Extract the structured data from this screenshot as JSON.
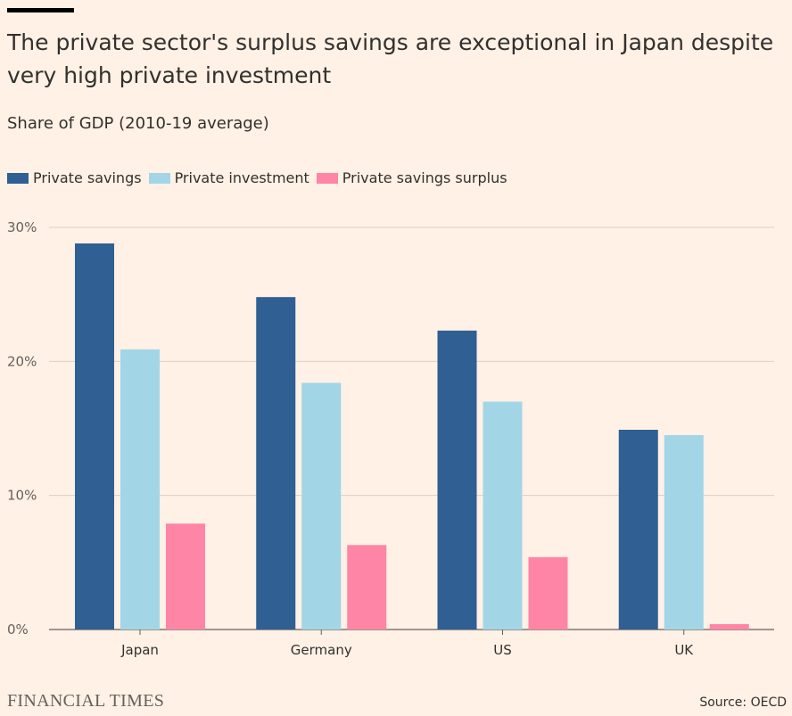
{
  "title": "The private sector's surplus savings are exceptional in Japan despite very high private investment",
  "subtitle": "Share of GDP (2010-19 average)",
  "footer": {
    "brand": "FINANCIAL TIMES",
    "source": "Source: OECD"
  },
  "chart_data": {
    "type": "bar",
    "categories": [
      "Japan",
      "Germany",
      "US",
      "UK"
    ],
    "series": [
      {
        "name": "Private savings",
        "color": "#2f5f93",
        "values": [
          28.8,
          24.8,
          22.3,
          14.9
        ]
      },
      {
        "name": "Private investment",
        "color": "#a2d6e7",
        "values": [
          20.9,
          18.4,
          17.0,
          14.5
        ]
      },
      {
        "name": "Private savings surplus",
        "color": "#ff85a6",
        "values": [
          7.9,
          6.3,
          5.4,
          0.4
        ]
      }
    ],
    "ylim": [
      0,
      30
    ],
    "yticks": [
      0,
      10,
      20,
      30
    ],
    "ytick_labels": [
      "0%",
      "10%",
      "20%",
      "30%"
    ],
    "grid": true,
    "legend_position": "top-left"
  }
}
